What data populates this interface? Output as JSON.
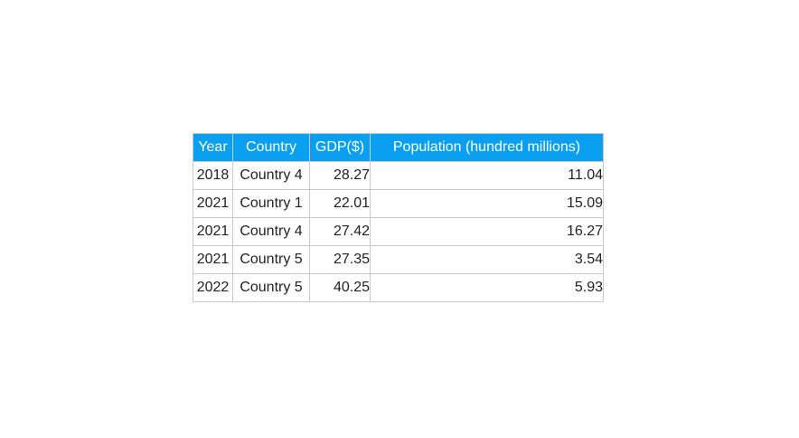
{
  "chart_data": {
    "type": "table",
    "columns": [
      "Year",
      "Country",
      "GDP($)",
      "Population (hundred millions)"
    ],
    "rows": [
      [
        "2018",
        "Country 4",
        "28.27",
        "11.04"
      ],
      [
        "2021",
        "Country 1",
        "22.01",
        "15.09"
      ],
      [
        "2021",
        "Country 4",
        "27.42",
        "16.27"
      ],
      [
        "2021",
        "Country 5",
        "27.35",
        "3.54"
      ],
      [
        "2022",
        "Country 5",
        "40.25",
        "5.93"
      ]
    ]
  },
  "style": {
    "header_bg": "#0a9ff0",
    "header_text": "#ffffff",
    "border": "#c8c8c8",
    "cell_text": "#222222"
  }
}
